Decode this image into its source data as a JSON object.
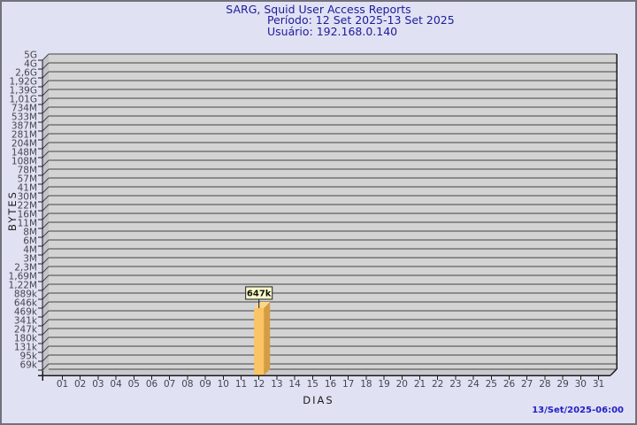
{
  "header": {
    "title": "SARG, Squid User Access Reports",
    "period": "Período: 12 Set 2025-13 Set 2025",
    "user": "Usuário: 192.168.0.140"
  },
  "footer": {
    "timestamp": "13/Set/2025-06:00"
  },
  "chart_data": {
    "type": "bar",
    "title": "SARG, Squid User Access Reports",
    "subtitle_period": "Período: 12 Set 2025-13 Set 2025",
    "subtitle_user": "Usuário: 192.168.0.140",
    "xlabel": "DIAS",
    "ylabel": "BYTES",
    "y_scale": "logarithmic",
    "y_order": "largest-at-top",
    "grid": true,
    "legend": false,
    "style": "3d-bar",
    "y_tick_labels": [
      "5G",
      "4G",
      "2,6G",
      "1,92G",
      "1,39G",
      "1,01G",
      "734M",
      "533M",
      "387M",
      "281M",
      "204M",
      "148M",
      "108M",
      "78M",
      "57M",
      "41M",
      "30M",
      "22M",
      "16M",
      "11M",
      "8M",
      "6M",
      "4M",
      "3M",
      "2,3M",
      "1,69M",
      "1,22M",
      "889k",
      "646k",
      "469k",
      "341k",
      "247k",
      "180k",
      "131k",
      "95k",
      "69k"
    ],
    "categories": [
      "01",
      "02",
      "03",
      "04",
      "05",
      "06",
      "07",
      "08",
      "09",
      "10",
      "11",
      "12",
      "13",
      "14",
      "15",
      "16",
      "17",
      "18",
      "19",
      "20",
      "21",
      "22",
      "23",
      "24",
      "25",
      "26",
      "27",
      "28",
      "29",
      "30",
      "31"
    ],
    "values": [
      0,
      0,
      0,
      0,
      0,
      0,
      0,
      0,
      0,
      0,
      0,
      647000,
      0,
      0,
      0,
      0,
      0,
      0,
      0,
      0,
      0,
      0,
      0,
      0,
      0,
      0,
      0,
      0,
      0,
      0,
      0
    ],
    "point_labels": {
      "12": "647k"
    },
    "colors": {
      "background": "#E1E1F4",
      "plot_bg": "#D3D3D3",
      "wall": "#C3C3C8",
      "floor": "#CACACE",
      "grid_line": "#434343",
      "axis_edge": "#1b1b1b",
      "tick_text": "#46464E",
      "title_text": "#1C1C9B",
      "timestamp_text": "#2222C4",
      "bar_front": "#FBC464",
      "bar_side": "#D59C42",
      "bar_top": "#FBD78A",
      "callout_bg": "#FFFFCB",
      "callout_border": "#1b1b1b",
      "callout_text": "#111111"
    }
  }
}
